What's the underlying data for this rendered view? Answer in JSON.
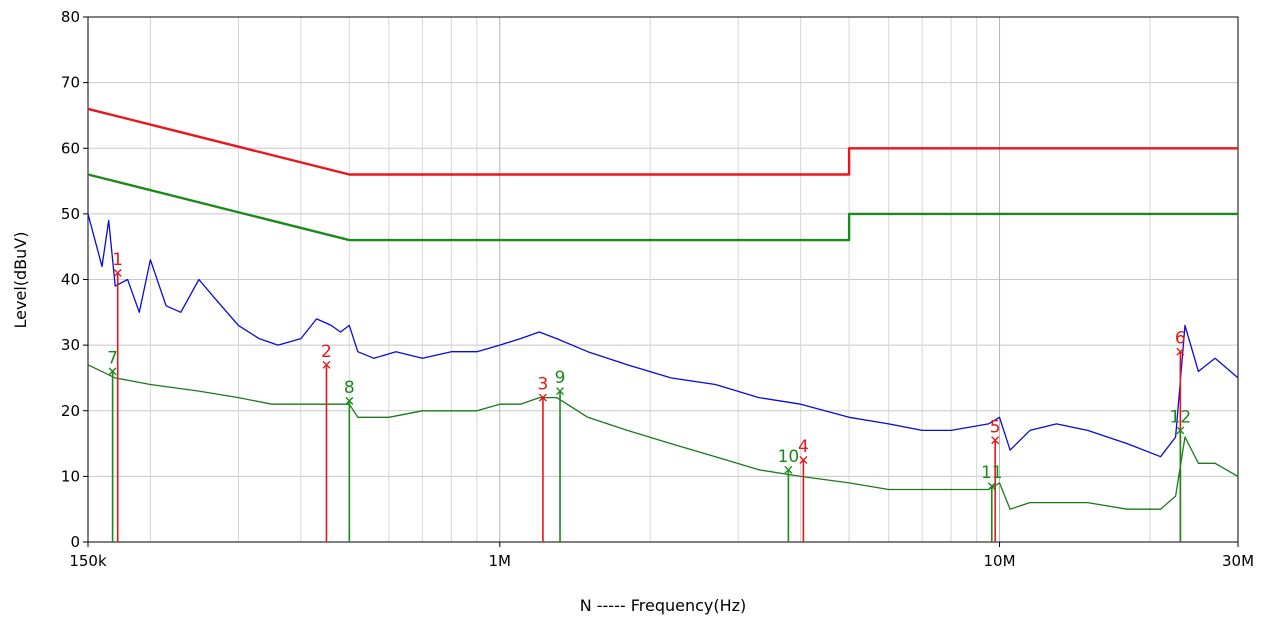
{
  "chart_data": {
    "type": "line",
    "xlabel": "N ----- Frequency(Hz)",
    "ylabel": "Level(dBuV)",
    "x_scale": "log",
    "xlim": [
      150000,
      30000000
    ],
    "ylim": [
      0,
      80
    ],
    "grid": true,
    "x_ticks": [
      {
        "value": 150000,
        "label": "150k"
      },
      {
        "value": 1000000,
        "label": "1M"
      },
      {
        "value": 10000000,
        "label": "10M"
      },
      {
        "value": 30000000,
        "label": "30M"
      }
    ],
    "y_ticks": [
      {
        "value": 0,
        "label": "0"
      },
      {
        "value": 10,
        "label": "10"
      },
      {
        "value": 20,
        "label": "20"
      },
      {
        "value": 30,
        "label": "30"
      },
      {
        "value": 40,
        "label": "40"
      },
      {
        "value": 50,
        "label": "50"
      },
      {
        "value": 60,
        "label": "60"
      },
      {
        "value": 70,
        "label": "70"
      },
      {
        "value": 80,
        "label": "80"
      }
    ],
    "series": [
      {
        "color": "#e8161b",
        "x": [
          150000,
          500000,
          500000,
          5000000,
          5000000,
          30000000
        ],
        "y": [
          66,
          56,
          56,
          56,
          60,
          60
        ]
      },
      {
        "color": "#1a8a1a",
        "x": [
          150000,
          500000,
          500000,
          5000000,
          5000000,
          30000000
        ],
        "y": [
          56,
          46,
          46,
          46,
          50,
          50
        ]
      },
      {
        "color": "#0a0adc",
        "x": [
          150000,
          160000,
          165000,
          170000,
          180000,
          190000,
          200000,
          215000,
          230000,
          250000,
          270000,
          300000,
          330000,
          360000,
          400000,
          430000,
          460000,
          480000,
          500000,
          520000,
          560000,
          620000,
          700000,
          800000,
          900000,
          1000000,
          1100000,
          1200000,
          1300000,
          1500000,
          1800000,
          2200000,
          2700000,
          3300000,
          4000000,
          5000000,
          6000000,
          7000000,
          8000000,
          9500000,
          10000000,
          10500000,
          11500000,
          13000000,
          15000000,
          18000000,
          21000000,
          22500000,
          23500000,
          25000000,
          27000000,
          30000000
        ],
        "y": [
          50,
          42,
          49,
          39,
          40,
          35,
          43,
          36,
          35,
          40,
          37,
          33,
          31,
          30,
          31,
          34,
          33,
          32,
          33,
          29,
          28,
          29,
          28,
          29,
          29,
          30,
          31,
          32,
          31,
          29,
          27,
          25,
          24,
          22,
          21,
          19,
          18,
          17,
          17,
          18,
          19,
          14,
          17,
          18,
          17,
          15,
          13,
          16,
          33,
          26,
          28,
          25
        ]
      },
      {
        "color": "#1a7a1a",
        "x": [
          150000,
          170000,
          200000,
          250000,
          300000,
          350000,
          400000,
          450000,
          500000,
          520000,
          600000,
          700000,
          800000,
          900000,
          1000000,
          1100000,
          1200000,
          1300000,
          1500000,
          1800000,
          2200000,
          2700000,
          3300000,
          4000000,
          5000000,
          6000000,
          7000000,
          8000000,
          9500000,
          10000000,
          10500000,
          11500000,
          13000000,
          15000000,
          18000000,
          21000000,
          22500000,
          23500000,
          25000000,
          27000000,
          30000000
        ],
        "y": [
          27,
          25,
          24,
          23,
          22,
          21,
          21,
          21,
          21,
          19,
          19,
          20,
          20,
          20,
          21,
          21,
          22,
          22,
          19,
          17,
          15,
          13,
          11,
          10,
          9,
          8,
          8,
          8,
          8,
          9,
          5,
          6,
          6,
          6,
          5,
          5,
          7,
          16,
          12,
          12,
          10
        ]
      }
    ],
    "markers": [
      {
        "label": "1",
        "color": "#e8161b",
        "x": 172000,
        "y": 41
      },
      {
        "label": "2",
        "color": "#e8161b",
        "x": 450000,
        "y": 27
      },
      {
        "label": "3",
        "color": "#e8161b",
        "x": 1220000,
        "y": 22
      },
      {
        "label": "4",
        "color": "#e8161b",
        "x": 4050000,
        "y": 12.5
      },
      {
        "label": "5",
        "color": "#e8161b",
        "x": 9800000,
        "y": 15.5
      },
      {
        "label": "6",
        "color": "#e8161b",
        "x": 23000000,
        "y": 29
      },
      {
        "label": "7",
        "color": "#1a8a1a",
        "x": 168000,
        "y": 26
      },
      {
        "label": "8",
        "color": "#1a8a1a",
        "x": 500000,
        "y": 21.5
      },
      {
        "label": "9",
        "color": "#1a8a1a",
        "x": 1320000,
        "y": 23
      },
      {
        "label": "10",
        "color": "#1a8a1a",
        "x": 3780000,
        "y": 11
      },
      {
        "label": "11",
        "color": "#1a8a1a",
        "x": 9650000,
        "y": 8.5
      },
      {
        "label": "12",
        "color": "#1a8a1a",
        "x": 23000000,
        "y": 17
      }
    ]
  }
}
